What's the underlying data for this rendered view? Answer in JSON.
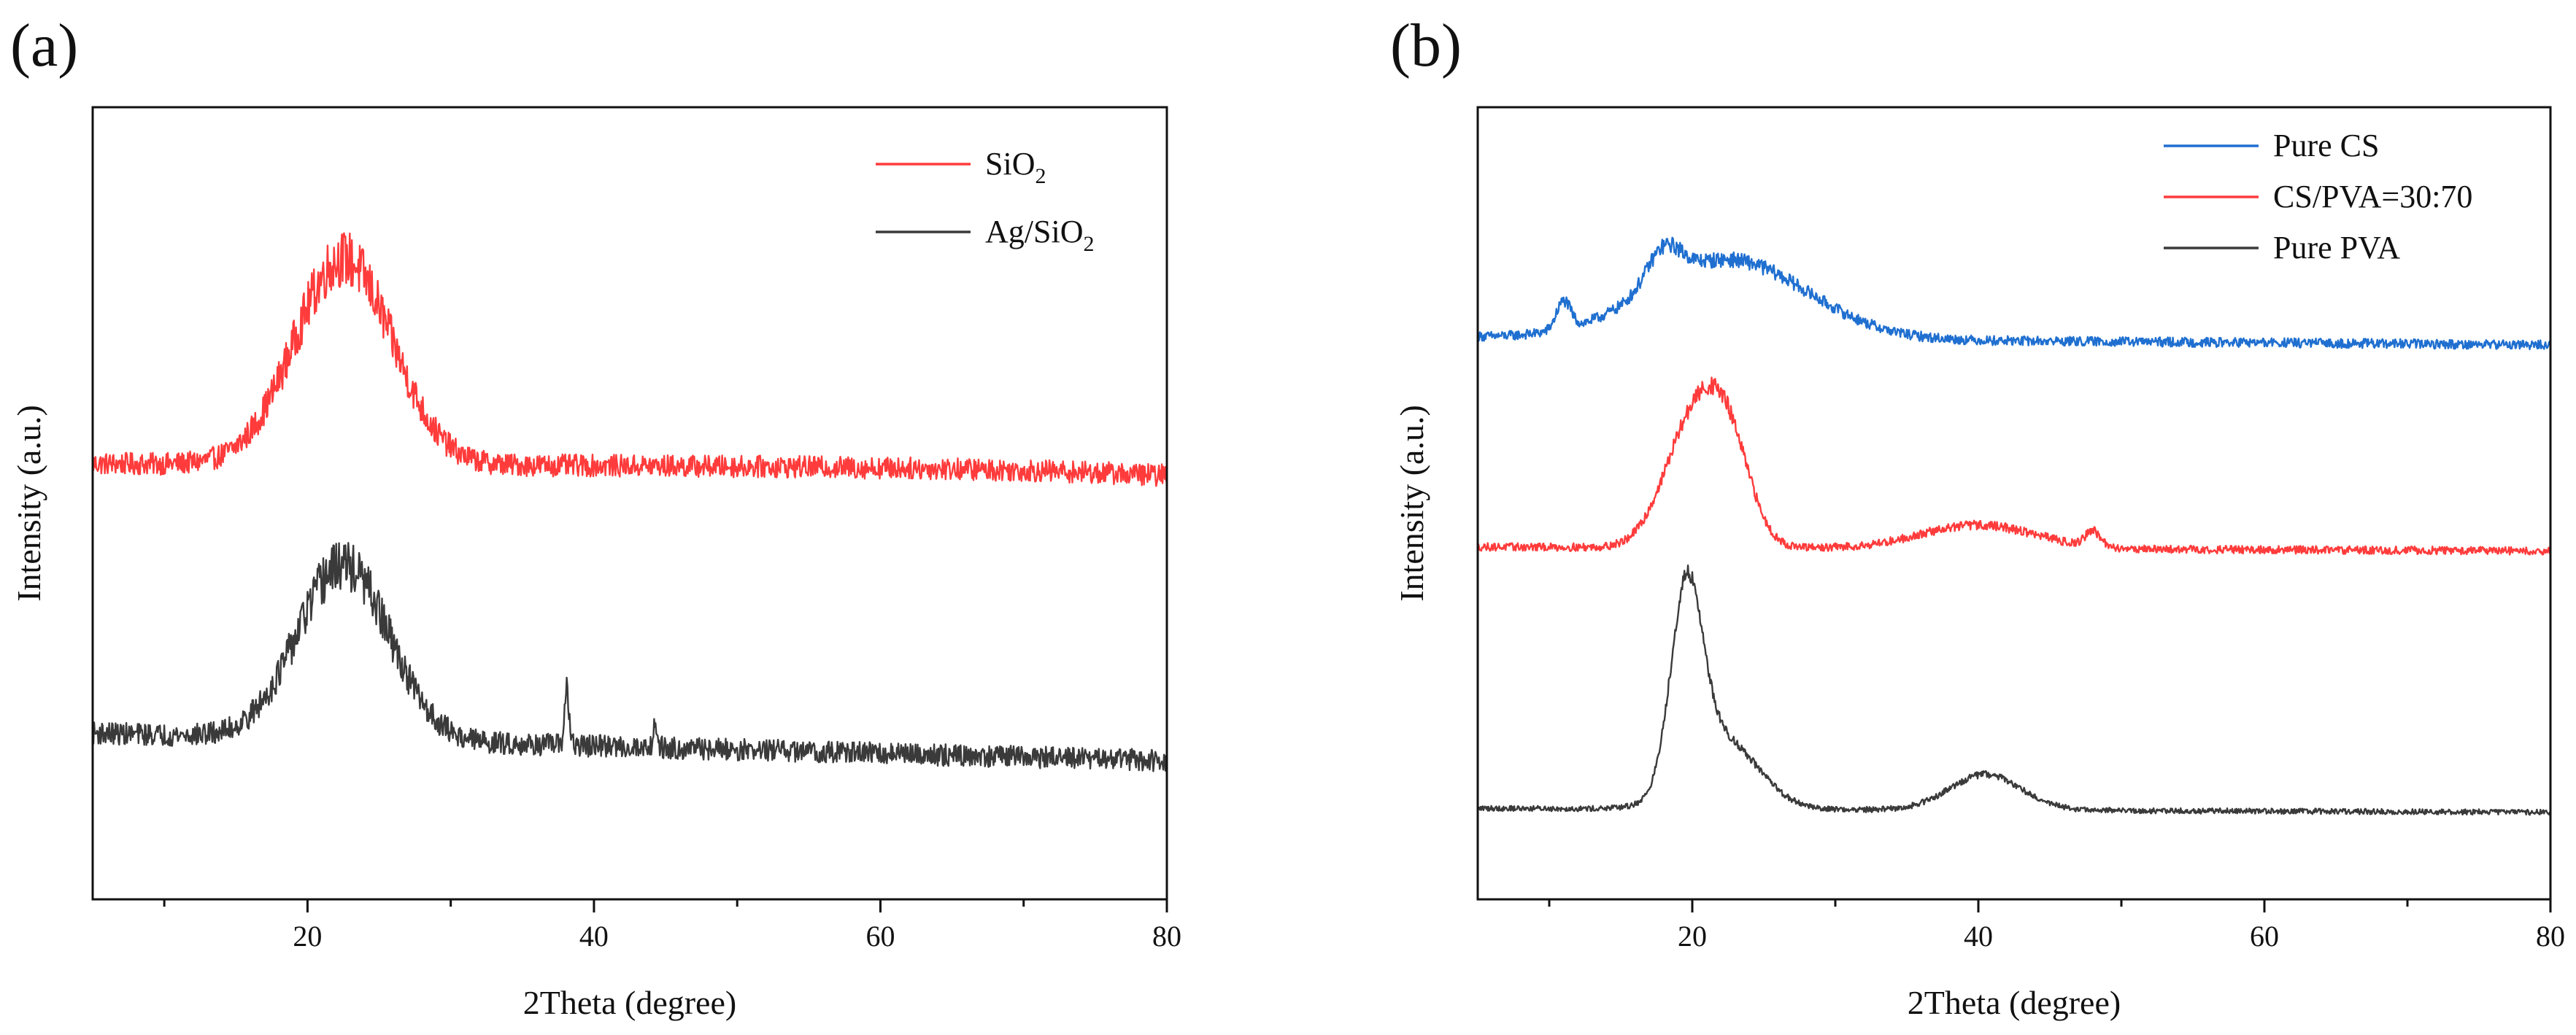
{
  "chart_data": [
    {
      "panel": "(a)",
      "type": "line",
      "title": "",
      "xlabel": "2Theta (degree)",
      "ylabel": "Intensity (a.u.)",
      "xlim": [
        5,
        80
      ],
      "ylim": [
        0,
        10
      ],
      "xticks": [
        20,
        40,
        60,
        80
      ],
      "xtick_labels": [
        "20",
        "40",
        "60",
        "80"
      ],
      "y_tick_labels_shown": false,
      "grid": false,
      "legend_position": "top-right",
      "series": [
        {
          "name": "SiO2",
          "legend_main": "SiO",
          "legend_sub": "2",
          "color": "#ff3b3b",
          "noise": 0.28,
          "baseline_start": 5.5,
          "baseline_end": 5.45,
          "peaks": [
            {
              "x": 22.5,
              "height": 2.6,
              "width": 3.4
            }
          ],
          "end_tail": -0.1
        },
        {
          "name": "Ag/SiO2",
          "legend_main": "Ag/SiO",
          "legend_sub": "2",
          "color": "#3a3a3a",
          "noise": 0.28,
          "baseline_start": 2.1,
          "baseline_end": 1.75,
          "peaks": [
            {
              "x": 22.5,
              "height": 2.2,
              "width": 3.2
            },
            {
              "x": 38.1,
              "height": 0.75,
              "width": 0.15
            },
            {
              "x": 44.3,
              "height": 0.3,
              "width": 0.15
            }
          ],
          "end_tail": 0
        }
      ]
    },
    {
      "panel": "(b)",
      "type": "line",
      "title": "",
      "xlabel": "2Theta (degree)",
      "ylabel": "Intensity (a.u.)",
      "xlim": [
        5,
        80
      ],
      "ylim": [
        0,
        10
      ],
      "xticks": [
        20,
        40,
        60,
        80
      ],
      "xtick_labels": [
        "20",
        "40",
        "60",
        "80"
      ],
      "y_tick_labels_shown": false,
      "grid": false,
      "legend_position": "top-right",
      "series": [
        {
          "name": "Pure CS",
          "legend_main": "Pure CS",
          "legend_sub": "",
          "color": "#1f6fd0",
          "noise": 0.12,
          "baseline_start": 7.1,
          "baseline_end": 7.0,
          "peaks": [
            {
              "x": 11.0,
              "height": 0.35,
              "width": 0.5
            },
            {
              "x": 18.0,
              "height": 0.45,
              "width": 1.2
            },
            {
              "x": 22.5,
              "height": 1.0,
              "width": 5.5
            }
          ],
          "end_tail": 0
        },
        {
          "name": "CS/PVA=30:70",
          "legend_main": "CS/PVA=30:70",
          "legend_sub": "",
          "color": "#ff3b3b",
          "noise": 0.1,
          "baseline_start": 4.45,
          "baseline_end": 4.4,
          "peaks": [
            {
              "x": 20.0,
              "height": 1.5,
              "width": 2.0
            },
            {
              "x": 22.5,
              "height": 1.1,
              "width": 1.6
            },
            {
              "x": 40.0,
              "height": 0.3,
              "width": 4.0
            },
            {
              "x": 48.0,
              "height": 0.2,
              "width": 0.5
            }
          ],
          "end_tail": 0
        },
        {
          "name": "Pure PVA",
          "legend_main": "Pure PVA",
          "legend_sub": "",
          "color": "#3a3a3a",
          "noise": 0.07,
          "baseline_start": 1.15,
          "baseline_end": 1.1,
          "peaks": [
            {
              "x": 19.6,
              "height": 2.4,
              "width": 1.1
            },
            {
              "x": 22.0,
              "height": 0.9,
              "width": 2.5
            },
            {
              "x": 40.5,
              "height": 0.45,
              "width": 2.5
            }
          ],
          "end_tail": 0
        }
      ]
    }
  ]
}
